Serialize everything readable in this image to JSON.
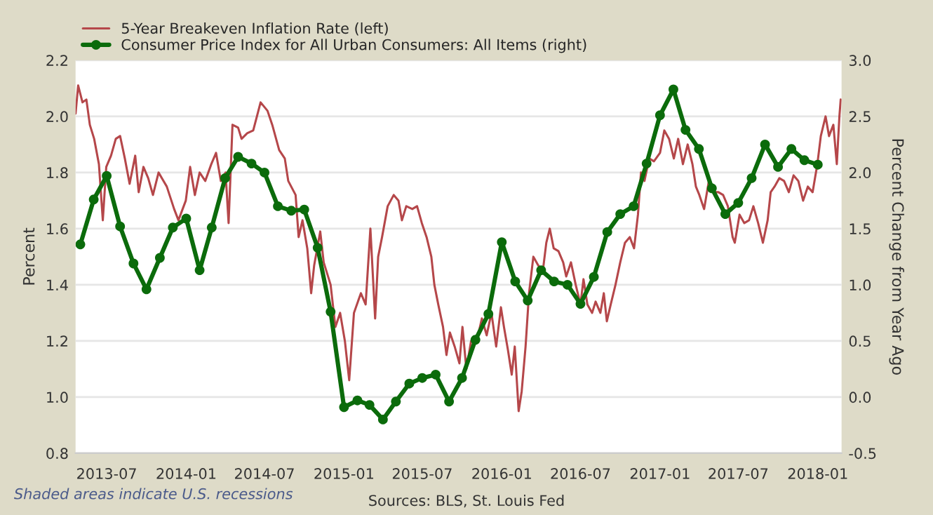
{
  "chart_data": {
    "type": "line",
    "ylabel": "Percent",
    "y2label": "Percent Change from Year Ago",
    "xlim": [
      "2013-04-20",
      "2018-02-25"
    ],
    "xticks": [
      {
        "value": "2013-07-01",
        "label": "2013-07"
      },
      {
        "value": "2014-01-01",
        "label": "2014-01"
      },
      {
        "value": "2014-07-01",
        "label": "2014-07"
      },
      {
        "value": "2015-01-01",
        "label": "2015-01"
      },
      {
        "value": "2015-07-01",
        "label": "2015-07"
      },
      {
        "value": "2016-01-01",
        "label": "2016-01"
      },
      {
        "value": "2016-07-01",
        "label": "2016-07"
      },
      {
        "value": "2017-01-01",
        "label": "2017-01"
      },
      {
        "value": "2017-07-01",
        "label": "2017-07"
      },
      {
        "value": "2018-01-01",
        "label": "2018-01"
      }
    ],
    "ylim": [
      0.8,
      2.2
    ],
    "yticks": [
      {
        "value": 0.8,
        "label": "0.8"
      },
      {
        "value": 1.0,
        "label": "1.0"
      },
      {
        "value": 1.2,
        "label": "1.2"
      },
      {
        "value": 1.4,
        "label": "1.4"
      },
      {
        "value": 1.6,
        "label": "1.6"
      },
      {
        "value": 1.8,
        "label": "1.8"
      },
      {
        "value": 2.0,
        "label": "2.0"
      },
      {
        "value": 2.2,
        "label": "2.2"
      }
    ],
    "y2lim": [
      -0.5,
      3.0
    ],
    "y2ticks": [
      {
        "value": -0.5,
        "label": "-0.5"
      },
      {
        "value": 0.0,
        "label": "0.0"
      },
      {
        "value": 0.5,
        "label": "0.5"
      },
      {
        "value": 1.0,
        "label": "1.0"
      },
      {
        "value": 1.5,
        "label": "1.5"
      },
      {
        "value": 2.0,
        "label": "2.0"
      },
      {
        "value": 2.5,
        "label": "2.5"
      },
      {
        "value": 3.0,
        "label": "3.0"
      }
    ],
    "grid": "y",
    "legend": "top left",
    "annotations": [
      "Shaded areas indicate U.S. recessions",
      "Sources: BLS, St. Louis Fed"
    ],
    "series": [
      {
        "name": "5-Year Breakeven Inflation Rate (left)",
        "color": "#b5474a",
        "marker": "none",
        "line_style": "solid",
        "x": [
          "2013-04-20",
          "2013-04-26",
          "2013-05-06",
          "2013-05-15",
          "2013-05-23",
          "2013-06-02",
          "2013-06-13",
          "2013-06-22",
          "2013-06-30",
          "2013-07-11",
          "2013-07-22",
          "2013-08-01",
          "2013-08-12",
          "2013-08-23",
          "2013-09-05",
          "2013-09-13",
          "2013-09-24",
          "2013-10-05",
          "2013-10-16",
          "2013-10-29",
          "2013-11-17",
          "2013-12-04",
          "2013-12-14",
          "2013-12-31",
          "2014-01-10",
          "2014-01-21",
          "2014-02-01",
          "2014-02-14",
          "2014-02-28",
          "2014-03-11",
          "2014-03-22",
          "2014-04-02",
          "2014-04-09",
          "2014-04-18",
          "2014-05-01",
          "2014-05-09",
          "2014-05-22",
          "2014-06-05",
          "2014-06-22",
          "2014-07-08",
          "2014-07-19",
          "2014-08-04",
          "2014-08-17",
          "2014-08-25",
          "2014-09-11",
          "2014-09-18",
          "2014-09-27",
          "2014-10-08",
          "2014-10-17",
          "2014-10-24",
          "2014-11-07",
          "2014-11-15",
          "2014-12-01",
          "2014-12-12",
          "2014-12-23",
          "2015-01-03",
          "2015-01-13",
          "2015-01-24",
          "2015-02-09",
          "2015-02-20",
          "2015-03-03",
          "2015-03-14",
          "2015-03-21",
          "2015-03-30",
          "2015-04-12",
          "2015-04-26",
          "2015-05-07",
          "2015-05-15",
          "2015-05-25",
          "2015-06-08",
          "2015-06-19",
          "2015-06-30",
          "2015-07-11",
          "2015-07-22",
          "2015-07-29",
          "2015-08-07",
          "2015-08-18",
          "2015-08-26",
          "2015-09-03",
          "2015-09-14",
          "2015-09-25",
          "2015-10-02",
          "2015-10-11",
          "2015-10-22",
          "2015-11-07",
          "2015-11-16",
          "2015-11-27",
          "2015-12-08",
          "2015-12-19",
          "2015-12-30",
          "2016-01-06",
          "2016-01-15",
          "2016-01-24",
          "2016-01-31",
          "2016-02-09",
          "2016-02-16",
          "2016-02-25",
          "2016-03-04",
          "2016-03-14",
          "2016-03-25",
          "2016-04-05",
          "2016-04-13",
          "2016-04-21",
          "2016-04-30",
          "2016-05-11",
          "2016-05-22",
          "2016-05-29",
          "2016-06-09",
          "2016-06-20",
          "2016-07-01",
          "2016-07-08",
          "2016-07-17",
          "2016-07-28",
          "2016-08-05",
          "2016-08-16",
          "2016-08-24",
          "2016-08-31",
          "2016-09-09",
          "2016-09-20",
          "2016-10-01",
          "2016-10-12",
          "2016-10-23",
          "2016-11-02",
          "2016-11-11",
          "2016-11-18",
          "2016-11-26",
          "2016-12-07",
          "2016-12-18",
          "2017-01-01",
          "2017-01-11",
          "2017-01-22",
          "2017-02-02",
          "2017-02-12",
          "2017-02-23",
          "2017-03-06",
          "2017-03-17",
          "2017-03-25",
          "2017-04-02",
          "2017-04-13",
          "2017-04-24",
          "2017-05-05",
          "2017-05-16",
          "2017-05-27",
          "2017-06-07",
          "2017-06-18",
          "2017-06-23",
          "2017-07-04",
          "2017-07-15",
          "2017-07-26",
          "2017-08-05",
          "2017-08-16",
          "2017-08-27",
          "2017-09-07",
          "2017-09-14",
          "2017-09-23",
          "2017-10-04",
          "2017-10-15",
          "2017-10-26",
          "2017-11-06",
          "2017-11-17",
          "2017-11-28",
          "2017-12-09",
          "2017-12-20",
          "2017-12-31",
          "2018-01-08",
          "2018-01-19",
          "2018-01-27",
          "2018-02-06",
          "2018-02-14",
          "2018-02-20",
          "2018-02-23"
        ],
        "values": [
          2.01,
          2.11,
          2.05,
          2.06,
          1.97,
          1.92,
          1.83,
          1.63,
          1.82,
          1.86,
          1.92,
          1.93,
          1.85,
          1.76,
          1.86,
          1.73,
          1.82,
          1.78,
          1.72,
          1.8,
          1.75,
          1.67,
          1.63,
          1.7,
          1.82,
          1.72,
          1.8,
          1.77,
          1.83,
          1.87,
          1.77,
          1.8,
          1.62,
          1.97,
          1.96,
          1.92,
          1.94,
          1.95,
          2.05,
          2.02,
          1.97,
          1.88,
          1.85,
          1.77,
          1.72,
          1.57,
          1.63,
          1.53,
          1.37,
          1.47,
          1.59,
          1.48,
          1.4,
          1.25,
          1.3,
          1.2,
          1.06,
          1.3,
          1.37,
          1.33,
          1.6,
          1.28,
          1.5,
          1.57,
          1.68,
          1.72,
          1.7,
          1.63,
          1.68,
          1.67,
          1.68,
          1.62,
          1.57,
          1.5,
          1.4,
          1.33,
          1.25,
          1.15,
          1.23,
          1.18,
          1.12,
          1.25,
          1.1,
          1.2,
          1.22,
          1.28,
          1.22,
          1.3,
          1.18,
          1.32,
          1.25,
          1.17,
          1.08,
          1.18,
          0.95,
          1.02,
          1.18,
          1.37,
          1.5,
          1.47,
          1.45,
          1.55,
          1.6,
          1.53,
          1.52,
          1.48,
          1.43,
          1.48,
          1.4,
          1.33,
          1.42,
          1.33,
          1.3,
          1.34,
          1.3,
          1.37,
          1.27,
          1.33,
          1.4,
          1.48,
          1.55,
          1.57,
          1.53,
          1.65,
          1.8,
          1.77,
          1.85,
          1.84,
          1.87,
          1.95,
          1.92,
          1.85,
          1.92,
          1.83,
          1.9,
          1.83,
          1.75,
          1.72,
          1.67,
          1.77,
          1.73,
          1.73,
          1.72,
          1.68,
          1.57,
          1.55,
          1.65,
          1.62,
          1.63,
          1.68,
          1.62,
          1.55,
          1.63,
          1.73,
          1.75,
          1.78,
          1.77,
          1.73,
          1.79,
          1.77,
          1.7,
          1.75,
          1.73,
          1.83,
          1.93,
          2.0,
          1.93,
          1.97,
          1.83,
          2.0,
          2.06
        ]
      },
      {
        "name": "Consumer Price Index for All Urban Consumers: All Items (right)",
        "color": "#0b6b0b",
        "axis": "y2",
        "marker": "circle",
        "line_style": "solid",
        "x": [
          "2013-05",
          "2013-06",
          "2013-07",
          "2013-08",
          "2013-09",
          "2013-10",
          "2013-11",
          "2013-12",
          "2014-01",
          "2014-02",
          "2014-03",
          "2014-04",
          "2014-05",
          "2014-06",
          "2014-07",
          "2014-08",
          "2014-09",
          "2014-10",
          "2014-11",
          "2014-12",
          "2015-01",
          "2015-02",
          "2015-03",
          "2015-04",
          "2015-05",
          "2015-06",
          "2015-07",
          "2015-08",
          "2015-09",
          "2015-10",
          "2015-11",
          "2015-12",
          "2016-01",
          "2016-02",
          "2016-03",
          "2016-04",
          "2016-05",
          "2016-06",
          "2016-07",
          "2016-08",
          "2016-09",
          "2016-10",
          "2016-11",
          "2016-12",
          "2017-01",
          "2017-02",
          "2017-03",
          "2017-04",
          "2017-05",
          "2017-06",
          "2017-07",
          "2017-08",
          "2017-09",
          "2017-10",
          "2017-11",
          "2017-12",
          "2018-01"
        ],
        "values": [
          1.36,
          1.76,
          1.97,
          1.52,
          1.19,
          0.96,
          1.24,
          1.51,
          1.59,
          1.13,
          1.51,
          1.95,
          2.14,
          2.08,
          2.0,
          1.7,
          1.66,
          1.67,
          1.33,
          0.76,
          -0.09,
          -0.03,
          -0.07,
          -0.2,
          -0.04,
          0.12,
          0.17,
          0.2,
          -0.04,
          0.17,
          0.51,
          0.74,
          1.38,
          1.03,
          0.86,
          1.13,
          1.03,
          1.0,
          0.83,
          1.07,
          1.47,
          1.63,
          1.7,
          2.08,
          2.51,
          2.74,
          2.38,
          2.21,
          1.86,
          1.63,
          1.73,
          1.95,
          2.25,
          2.05,
          2.21,
          2.11,
          2.07
        ]
      }
    ]
  }
}
